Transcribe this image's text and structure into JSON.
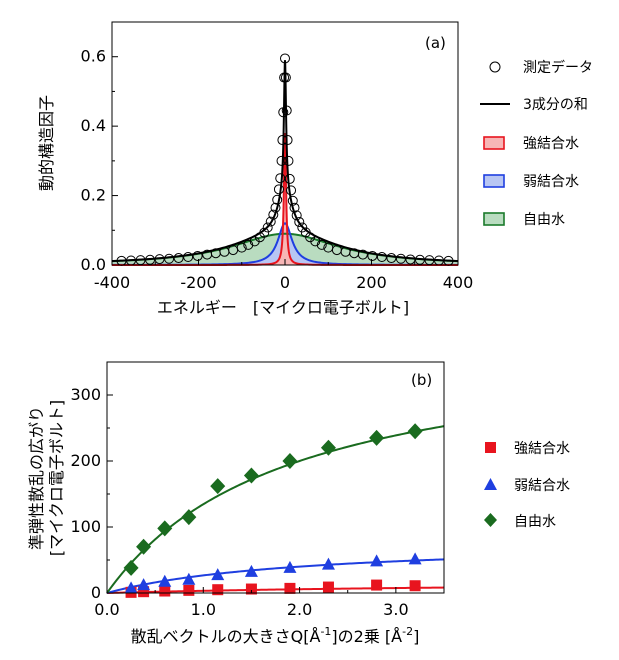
{
  "chart_data": [
    {
      "type": "area",
      "panel_label": "(a)",
      "xlabel": "エネルギー　[マイクロ電子ボルト]",
      "ylabel": "動的構造因子",
      "xlim": [
        -400,
        400
      ],
      "ylim": [
        0,
        0.7
      ],
      "xticks": [
        "-400",
        "-200",
        "0",
        "200",
        "400"
      ],
      "yticks": [
        "0.0",
        "0.2",
        "0.4",
        "0.6"
      ],
      "legend_position": "right",
      "legend": {
        "measured": "測定データ",
        "sum": "3成分の和",
        "strong": "強結合水",
        "weak": "弱結合水",
        "free": "自由水"
      },
      "colors": {
        "strong_line": "#e8141e",
        "strong_fill": "#f7b6b6",
        "weak_line": "#1f3fe0",
        "weak_fill": "#b8c6f3",
        "free_line": "#1a7a2b",
        "free_fill": "#b9dcc0",
        "sum_line": "#000000"
      },
      "components": [
        {
          "name": "強結合水",
          "amplitude": 0.38,
          "hwhm": 3.0
        },
        {
          "name": "弱結合水",
          "amplitude": 0.12,
          "hwhm": 20
        },
        {
          "name": "自由水",
          "amplitude": 0.09,
          "hwhm": 150
        }
      ],
      "measured": {
        "x": [
          -378,
          -356,
          -334,
          -312,
          -290,
          -268,
          -246,
          -224,
          -202,
          -180,
          -160,
          -140,
          -120,
          -100,
          -85,
          -70,
          -58,
          -48,
          -40,
          -33,
          -27,
          -22,
          -18,
          -14,
          -11,
          -8,
          -6,
          -4,
          -2,
          0,
          2,
          4,
          6,
          8,
          11,
          14,
          18,
          22,
          27,
          33,
          40,
          48,
          58,
          70,
          85,
          100,
          120,
          140,
          160,
          180,
          202,
          224,
          246,
          268,
          290,
          312,
          334,
          356,
          378
        ],
        "y": [
          0.012,
          0.013,
          0.014,
          0.015,
          0.017,
          0.018,
          0.02,
          0.023,
          0.026,
          0.03,
          0.034,
          0.038,
          0.043,
          0.05,
          0.058,
          0.068,
          0.08,
          0.093,
          0.108,
          0.125,
          0.145,
          0.165,
          0.188,
          0.218,
          0.25,
          0.3,
          0.36,
          0.44,
          0.54,
          0.595,
          0.54,
          0.445,
          0.36,
          0.3,
          0.248,
          0.215,
          0.185,
          0.165,
          0.143,
          0.124,
          0.108,
          0.094,
          0.08,
          0.068,
          0.058,
          0.05,
          0.043,
          0.038,
          0.034,
          0.03,
          0.026,
          0.023,
          0.02,
          0.018,
          0.016,
          0.015,
          0.014,
          0.013,
          0.012
        ]
      }
    },
    {
      "type": "scatter",
      "panel_label": "(b)",
      "xlabel_main": "散乱ベクトルの大きさQ[",
      "xlabel_u1": "Å",
      "xlabel_e1": "-1",
      "xlabel_mid": "]の2乗 [",
      "xlabel_u2": "Å",
      "xlabel_e2": "-2",
      "xlabel_end": "]",
      "ylabel_line1": "準弾性散乱の広がり",
      "ylabel_line2": "[マイクロ電子ボルト]",
      "xlim": [
        0,
        3.5
      ],
      "ylim": [
        0,
        350
      ],
      "xticks": [
        "0.0",
        "1.0",
        "2.0",
        "3.0"
      ],
      "yticks": [
        "0",
        "100",
        "200",
        "300"
      ],
      "legend_position": "right",
      "colors": {
        "strong": "#e8141e",
        "weak": "#1f3fe0",
        "free": "#1a6b1f"
      },
      "series": [
        {
          "name": "強結合水",
          "marker": "square",
          "x": [
            0.25,
            0.38,
            0.6,
            0.85,
            1.15,
            1.5,
            1.9,
            2.3,
            2.8,
            3.2
          ],
          "y": [
            1,
            2,
            3,
            4,
            5,
            6,
            7,
            9,
            12,
            11
          ],
          "fit": {
            "Q2max": 5.0,
            "Gmax": 20
          }
        },
        {
          "name": "弱結合水",
          "marker": "triangle",
          "x": [
            0.25,
            0.38,
            0.6,
            0.85,
            1.15,
            1.5,
            1.9,
            2.3,
            2.8,
            3.2
          ],
          "y": [
            7,
            12,
            17,
            20,
            27,
            32,
            38,
            43,
            48,
            51
          ],
          "fit": {
            "Q2max": 2.0,
            "Gmax": 80
          }
        },
        {
          "name": "自由水",
          "marker": "diamond",
          "x": [
            0.25,
            0.38,
            0.6,
            0.85,
            1.15,
            1.5,
            1.9,
            2.3,
            2.8,
            3.2
          ],
          "y": [
            38,
            70,
            98,
            115,
            162,
            178,
            200,
            220,
            235,
            245
          ],
          "fit": {
            "Q2max": 1.9,
            "Gmax": 390
          }
        }
      ]
    }
  ]
}
